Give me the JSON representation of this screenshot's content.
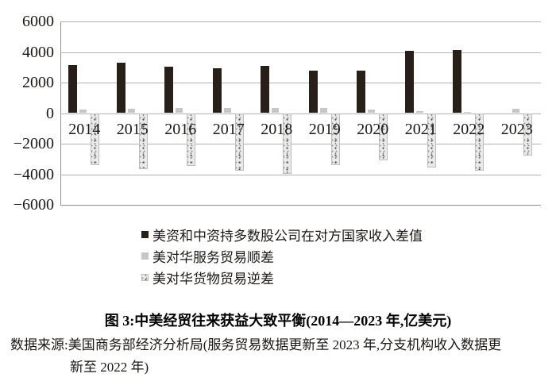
{
  "figure": {
    "caption": "图 3:中美经贸往来获益大致平衡(2014—2023 年,亿美元)",
    "source_line1": "数据来源:美国商务部经济分析局(服务贸易数据更新至 2023 年,分支机构收入数据更",
    "source_line2": "新至 2022 年)"
  },
  "chart_data": {
    "type": "bar",
    "title": "图 3:中美经贸往来获益大致平衡(2014—2023 年,亿美元)",
    "unit": "亿美元",
    "categories": [
      "2014",
      "2015",
      "2016",
      "2017",
      "2018",
      "2019",
      "2020",
      "2021",
      "2022",
      "2023"
    ],
    "series": [
      {
        "name": "美资和中资持多数股公司在对方国家收入差值",
        "style": "solid-black",
        "color": "#262019",
        "values": [
          3150,
          3300,
          3050,
          2950,
          3100,
          2800,
          2800,
          4100,
          4150,
          null
        ]
      },
      {
        "name": "美对华服务贸易顺差",
        "style": "solid-gray",
        "color": "#c6c6c6",
        "values": [
          230,
          260,
          360,
          320,
          350,
          320,
          210,
          140,
          80,
          280
        ]
      },
      {
        "name": "美对华货物贸易逆差",
        "style": "speckle",
        "color": "#e9e9e9",
        "values": [
          -3400,
          -3650,
          -3450,
          -3750,
          -3950,
          -3400,
          -3100,
          -3550,
          -3750,
          -2800
        ]
      }
    ],
    "ylim": [
      -6000,
      6000
    ],
    "ytick_labels": [
      "6000",
      "4000",
      "2000",
      "0",
      "−2000",
      "−4000",
      "−6000"
    ],
    "grid": true,
    "legend_position": "below-left"
  },
  "colors": {
    "gridline": "#b2b2b2",
    "axis": "#8f8f8f",
    "black_bar": "#262019",
    "gray_bar": "#c6c6c6",
    "speckle_bar": "#e9e9e9"
  }
}
